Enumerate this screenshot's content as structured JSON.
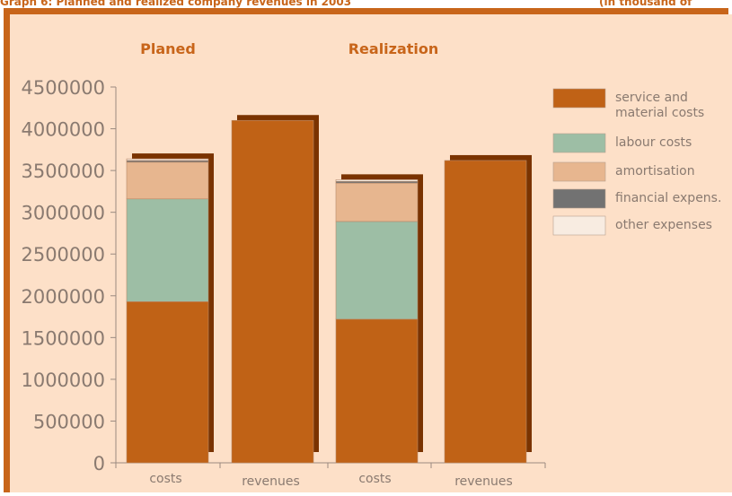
{
  "caption": {
    "left": "Graph 6: Planned and realized company revenues in 2003",
    "right": "(in thousand of"
  },
  "colors": {
    "frame": "#c8651a",
    "background": "#fde0c8",
    "bar_shadow": "#7a3300",
    "axis": "#9a8a80",
    "text": "#8a7a70",
    "group_title": "#c8651a"
  },
  "chart_data": {
    "type": "bar",
    "stacked": true,
    "groups": [
      "Planed",
      "Realization"
    ],
    "categories": [
      "costs",
      "revenues",
      "costs",
      "revenues"
    ],
    "category_group": [
      0,
      0,
      1,
      1
    ],
    "ylim": [
      0,
      4500000
    ],
    "yticks": [
      0,
      500000,
      1000000,
      1500000,
      2000000,
      2500000,
      3000000,
      3500000,
      4000000,
      4500000
    ],
    "ytick_labels": [
      "0",
      "500000",
      "1000000",
      "1500000",
      "2000000",
      "2500000",
      "3000000",
      "3500000",
      "4000000",
      "4500000"
    ],
    "grid": false,
    "legend_position": "right",
    "series": [
      {
        "name": "service and material costs",
        "color": "#c06216",
        "values": [
          1930000,
          4100000,
          1720000,
          3620000
        ]
      },
      {
        "name": "labour costs",
        "color": "#9dbea5",
        "values": [
          1230000,
          0,
          1170000,
          0
        ]
      },
      {
        "name": "amortisation",
        "color": "#e7b68f",
        "values": [
          440000,
          0,
          460000,
          0
        ]
      },
      {
        "name": "financial expens.",
        "color": "#727272",
        "values": [
          20000,
          0,
          20000,
          0
        ]
      },
      {
        "name": "other expenses",
        "color": "#f8ece1",
        "values": [
          20000,
          0,
          20000,
          0
        ]
      }
    ],
    "legend": [
      {
        "lines": [
          "service and",
          "material costs"
        ],
        "color": "#c06216"
      },
      {
        "lines": [
          "labour costs"
        ],
        "color": "#9dbea5"
      },
      {
        "lines": [
          "amortisation"
        ],
        "color": "#e7b68f"
      },
      {
        "lines": [
          "financial expens."
        ],
        "color": "#727272"
      },
      {
        "lines": [
          "other expenses"
        ],
        "color": "#f8ece1"
      }
    ]
  }
}
